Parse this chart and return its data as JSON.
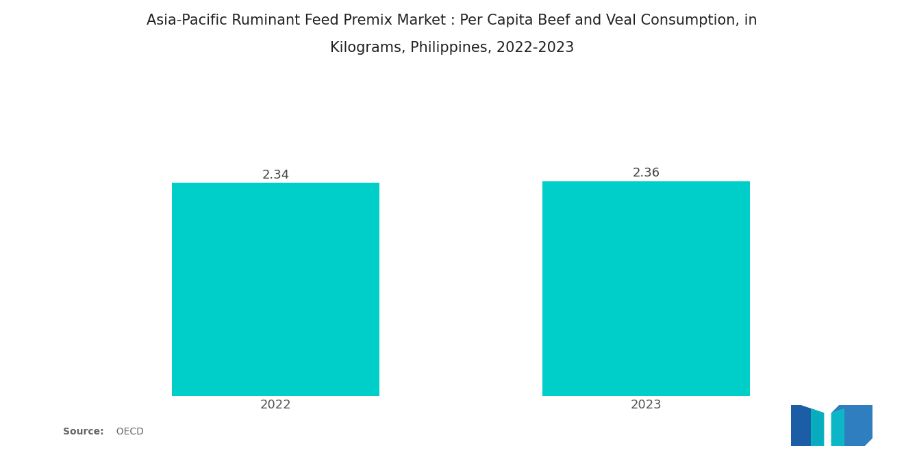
{
  "title_line1": "Asia-Pacific Ruminant Feed Premix Market : Per Capita Beef and Veal Consumption, in",
  "title_line2": "Kilograms, Philippines, 2022-2023",
  "categories": [
    "2022",
    "2023"
  ],
  "values": [
    2.34,
    2.36
  ],
  "bar_color": "#00CEC9",
  "background_color": "#ffffff",
  "title_fontsize": 15,
  "label_fontsize": 13,
  "value_fontsize": 13,
  "source_bold": "Source:",
  "source_normal": "  OECD",
  "ylim": [
    0,
    3.0
  ],
  "bar_width": 0.28,
  "x_positions": [
    0.25,
    0.75
  ],
  "xlim": [
    0.0,
    1.0
  ],
  "logo_left_color": "#1B5EA6",
  "logo_right_color": "#3A9BB5"
}
